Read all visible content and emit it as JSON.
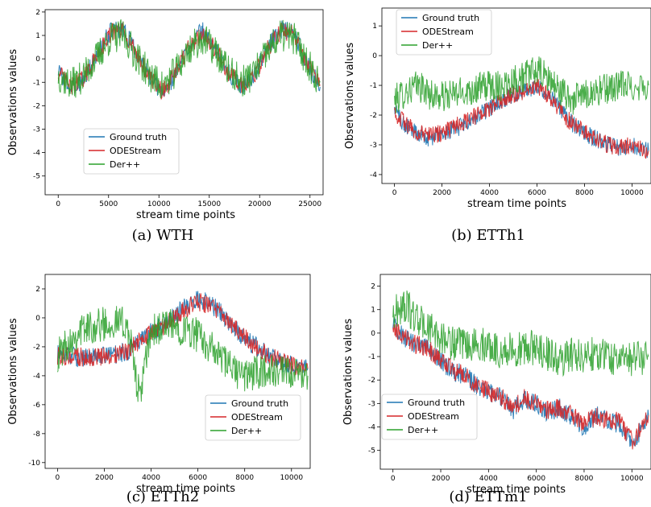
{
  "chart_data": [
    {
      "type": "line",
      "caption": "(a) WTH",
      "xlabel": "stream time points",
      "ylabel": "Observations values",
      "xlim": [
        -1300,
        26300
      ],
      "ylim": [
        -5.8,
        2.1
      ],
      "xticks": [
        0,
        5000,
        10000,
        15000,
        20000,
        25000
      ],
      "yticks": [
        -5,
        -4,
        -3,
        -2,
        -1,
        0,
        1,
        2
      ],
      "legend": "lower-center",
      "colors": {
        "Ground truth": "#1f77b4",
        "ODEStream": "#d62728",
        "Der++": "#2ca02c"
      },
      "series": [
        {
          "name": "Ground truth",
          "x": [
            0,
            1300,
            2600,
            3900,
            5200,
            6500,
            7800,
            9100,
            10400,
            11700,
            13000,
            14300,
            15600,
            16900,
            18200,
            19500,
            20800,
            22100,
            23400,
            24700,
            26000
          ],
          "y": [
            -0.5,
            -1.3,
            -0.8,
            0.2,
            1.2,
            1.3,
            0.2,
            -0.8,
            -1.5,
            -0.6,
            0.6,
            1.2,
            0.4,
            -0.6,
            -1.2,
            -0.7,
            0.5,
            1.3,
            1.1,
            -0.2,
            -1.2
          ]
        },
        {
          "name": "ODEStream",
          "x": [
            0,
            1300,
            2600,
            3900,
            5200,
            6500,
            7800,
            9100,
            10400,
            11700,
            13000,
            14300,
            15600,
            16900,
            18200,
            19500,
            20800,
            22100,
            23400,
            24700,
            26000
          ],
          "y": [
            -0.6,
            -1.2,
            -0.8,
            0.2,
            1.1,
            1.2,
            0.2,
            -0.8,
            -1.4,
            -0.6,
            0.5,
            1.1,
            0.4,
            -0.6,
            -1.1,
            -0.7,
            0.4,
            1.2,
            1.0,
            -0.2,
            -1.1
          ]
        },
        {
          "name": "Der++",
          "x": [
            0,
            1300,
            2600,
            3900,
            5200,
            6500,
            7800,
            9100,
            10400,
            11700,
            13000,
            14300,
            15600,
            16900,
            18200,
            19500,
            20800,
            22100,
            23400,
            24700,
            26000
          ],
          "y": [
            -0.7,
            -1.1,
            -0.7,
            0.1,
            0.9,
            1.0,
            0.1,
            -0.7,
            -1.2,
            -0.5,
            0.4,
            0.9,
            0.3,
            -0.5,
            -1.0,
            -0.6,
            0.3,
            1.0,
            0.9,
            -0.1,
            -1.0
          ]
        }
      ]
    },
    {
      "type": "line",
      "caption": "(b) ETTh1",
      "xlabel": "stream time points",
      "ylabel": "Observations values",
      "xlim": [
        -530,
        10800
      ],
      "ylim": [
        -4.3,
        1.6
      ],
      "xticks": [
        0,
        2000,
        4000,
        6000,
        8000,
        10000
      ],
      "yticks": [
        -4,
        -3,
        -2,
        -1,
        0,
        1
      ],
      "legend": "upper-left",
      "colors": {
        "Ground truth": "#1f77b4",
        "ODEStream": "#d62728",
        "Der++": "#2ca02c"
      },
      "series": [
        {
          "name": "Ground truth",
          "x": [
            0,
            500,
            1000,
            1500,
            2000,
            2500,
            3000,
            3500,
            4000,
            4500,
            5000,
            5500,
            6000,
            6500,
            7000,
            7500,
            8000,
            8500,
            9000,
            9500,
            10000,
            10700
          ],
          "y": [
            -1.8,
            -2.4,
            -2.6,
            -2.8,
            -2.6,
            -2.5,
            -2.3,
            -2.0,
            -1.8,
            -1.5,
            -1.3,
            -1.2,
            -1.0,
            -1.3,
            -1.8,
            -2.3,
            -2.6,
            -2.8,
            -3.0,
            -3.1,
            -3.0,
            -3.2
          ]
        },
        {
          "name": "ODEStream",
          "x": [
            0,
            500,
            1000,
            1500,
            2000,
            2500,
            3000,
            3500,
            4000,
            4500,
            5000,
            5500,
            6000,
            6500,
            7000,
            7500,
            8000,
            8500,
            9000,
            9500,
            10000,
            10700
          ],
          "y": [
            -1.9,
            -2.3,
            -2.6,
            -2.7,
            -2.6,
            -2.4,
            -2.2,
            -2.0,
            -1.8,
            -1.5,
            -1.3,
            -1.2,
            -1.0,
            -1.4,
            -1.9,
            -2.3,
            -2.6,
            -2.8,
            -3.0,
            -3.1,
            -3.0,
            -3.2
          ]
        },
        {
          "name": "Der++",
          "x": [
            0,
            500,
            1000,
            1500,
            2000,
            2500,
            3000,
            3500,
            4000,
            4500,
            5000,
            5500,
            6000,
            6500,
            7000,
            7500,
            8000,
            8500,
            9000,
            9500,
            10000,
            10700
          ],
          "y": [
            -1.5,
            -1.2,
            -1.0,
            -1.3,
            -1.4,
            -1.3,
            -1.2,
            -1.1,
            -1.0,
            -1.0,
            -0.8,
            -0.7,
            -0.5,
            -0.8,
            -1.2,
            -1.5,
            -1.3,
            -1.2,
            -1.1,
            -1.0,
            -1.0,
            -1.0
          ]
        }
      ]
    },
    {
      "type": "line",
      "caption": "(c) ETTh2",
      "xlabel": "stream time points",
      "ylabel": "Observations values",
      "xlim": [
        -530,
        10800
      ],
      "ylim": [
        -10.4,
        3.0
      ],
      "xticks": [
        0,
        2000,
        4000,
        6000,
        8000,
        10000
      ],
      "yticks": [
        -10,
        -8,
        -6,
        -4,
        -2,
        0,
        2
      ],
      "legend": "lower-right",
      "colors": {
        "Ground truth": "#1f77b4",
        "ODEStream": "#d62728",
        "Der++": "#2ca02c"
      },
      "series": [
        {
          "name": "Ground truth",
          "x": [
            0,
            500,
            1000,
            1500,
            2000,
            2500,
            3000,
            3500,
            4000,
            4500,
            5000,
            5500,
            6000,
            6500,
            7000,
            7500,
            8000,
            8500,
            9000,
            9500,
            10000,
            10700
          ],
          "y": [
            -2.5,
            -2.6,
            -2.8,
            -2.7,
            -2.6,
            -2.5,
            -2.3,
            -1.5,
            -1.0,
            -0.5,
            0.2,
            0.8,
            1.4,
            1.0,
            0.3,
            -0.6,
            -1.4,
            -2.0,
            -2.6,
            -3.0,
            -3.3,
            -3.5
          ]
        },
        {
          "name": "ODEStream",
          "x": [
            0,
            500,
            1000,
            1500,
            2000,
            2500,
            3000,
            3500,
            4000,
            4500,
            5000,
            5500,
            6000,
            6500,
            7000,
            7500,
            8000,
            8500,
            9000,
            9500,
            10000,
            10700
          ],
          "y": [
            -2.6,
            -2.6,
            -2.7,
            -2.7,
            -2.6,
            -2.5,
            -2.3,
            -1.6,
            -1.1,
            -0.6,
            0.0,
            0.6,
            1.1,
            0.9,
            0.2,
            -0.6,
            -1.4,
            -2.0,
            -2.6,
            -3.0,
            -3.3,
            -3.5
          ]
        },
        {
          "name": "Der++",
          "x": [
            0,
            500,
            1000,
            1500,
            2000,
            2500,
            3000,
            3500,
            4000,
            4500,
            5000,
            5500,
            6000,
            6500,
            7000,
            7500,
            8000,
            8500,
            9000,
            9500,
            10000,
            10700
          ],
          "y": [
            -2.6,
            -1.6,
            -0.8,
            -0.6,
            -0.4,
            -0.3,
            -0.5,
            -5.5,
            -1.0,
            -0.6,
            -0.6,
            -0.8,
            -1.2,
            -2.0,
            -2.8,
            -3.6,
            -4.0,
            -3.8,
            -3.6,
            -3.8,
            -4.0,
            -4.0
          ]
        }
      ]
    },
    {
      "type": "line",
      "caption": "(d) ETTm1",
      "xlabel": "stream time points",
      "ylabel": "Observations values",
      "xlim": [
        -530,
        10800
      ],
      "ylim": [
        -5.8,
        2.5
      ],
      "xticks": [
        0,
        2000,
        4000,
        6000,
        8000,
        10000
      ],
      "yticks": [
        -5,
        -4,
        -3,
        -2,
        -1,
        0,
        1,
        2
      ],
      "legend": "lower-left",
      "colors": {
        "Ground truth": "#1f77b4",
        "ODEStream": "#d62728",
        "Der++": "#2ca02c"
      },
      "series": [
        {
          "name": "Ground truth",
          "x": [
            0,
            500,
            1000,
            1500,
            2000,
            2500,
            3000,
            3500,
            4000,
            4500,
            5000,
            5500,
            6000,
            6500,
            7000,
            7500,
            8000,
            8500,
            9000,
            9500,
            10000,
            10700
          ],
          "y": [
            0.3,
            -0.2,
            -0.5,
            -0.7,
            -1.2,
            -1.6,
            -1.8,
            -2.2,
            -2.5,
            -2.7,
            -3.3,
            -2.8,
            -3.0,
            -3.4,
            -3.2,
            -3.6,
            -4.0,
            -3.5,
            -3.8,
            -3.9,
            -4.8,
            -3.5
          ]
        },
        {
          "name": "ODEStream",
          "x": [
            0,
            500,
            1000,
            1500,
            2000,
            2500,
            3000,
            3500,
            4000,
            4500,
            5000,
            5500,
            6000,
            6500,
            7000,
            7500,
            8000,
            8500,
            9000,
            9500,
            10000,
            10700
          ],
          "y": [
            0.3,
            -0.2,
            -0.5,
            -0.7,
            -1.2,
            -1.6,
            -1.8,
            -2.2,
            -2.5,
            -2.7,
            -3.2,
            -2.8,
            -3.0,
            -3.3,
            -3.2,
            -3.5,
            -3.9,
            -3.5,
            -3.7,
            -3.8,
            -4.6,
            -3.5
          ]
        },
        {
          "name": "Der++",
          "x": [
            0,
            500,
            1000,
            1500,
            2000,
            2500,
            3000,
            3500,
            4000,
            4500,
            5000,
            5500,
            6000,
            6500,
            7000,
            7500,
            8000,
            8500,
            9000,
            9500,
            10000,
            10700
          ],
          "y": [
            0.8,
            1.2,
            0.6,
            0.2,
            -0.2,
            -0.4,
            -0.6,
            -0.5,
            -0.5,
            -0.8,
            -0.7,
            -0.7,
            -0.6,
            -0.9,
            -1.2,
            -0.9,
            -1.0,
            -0.8,
            -1.0,
            -1.1,
            -1.1,
            -1.0
          ]
        }
      ]
    }
  ]
}
